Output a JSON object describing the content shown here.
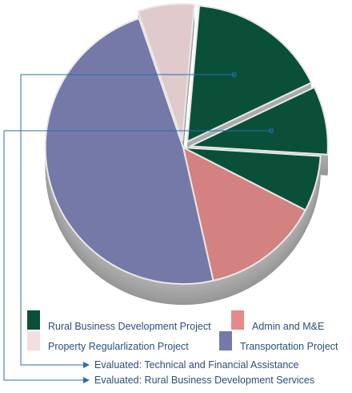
{
  "chart_data": {
    "type": "pie",
    "style": "3d-exploded",
    "slices": [
      {
        "label": "Rural Business Development Project",
        "group": "Evaluated: Technical and Financial Assistance",
        "value": 16.5,
        "color": "#0a5039",
        "exploded": true
      },
      {
        "label": "Rural Business Development Project",
        "group": "Evaluated: Rural Business Development Services",
        "value": 8.1,
        "color": "#0a5039",
        "exploded": true
      },
      {
        "label": "Rural Business Development Project",
        "value": 6.6,
        "color": "#0a5039",
        "exploded": false
      },
      {
        "label": "Admin and M&E",
        "value": 13.9,
        "color": "#d38181",
        "exploded": false
      },
      {
        "label": "Transportation Project",
        "value": 48.3,
        "color": "#7579a8",
        "exploded": false
      },
      {
        "label": "Property Regularlization Project",
        "value": 6.6,
        "color": "#e0cacb",
        "exploded": true
      }
    ],
    "legend": [
      {
        "label": "Rural Business Development Project",
        "color": "#0a5039"
      },
      {
        "label": "Admin and M&E",
        "color": "#e58a88"
      },
      {
        "label": "Property Regularlization Project",
        "color": "#f3dfdf"
      },
      {
        "label": "Transportation Project",
        "color": "#7579a8"
      }
    ],
    "annotations": [
      {
        "label": "Evaluated: Technical and Financial Assistance",
        "color": "#2b6cb0"
      },
      {
        "label": "Evaluated: Rural Business Development Services",
        "color": "#2b6cb0"
      }
    ]
  }
}
